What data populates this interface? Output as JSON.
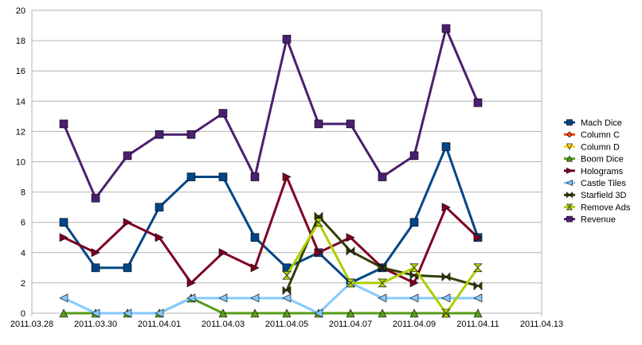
{
  "chart_data": {
    "type": "line",
    "title": "",
    "xlabel": "",
    "ylabel": "",
    "ylim": [
      0,
      20
    ],
    "yticks": [
      0,
      2,
      4,
      6,
      8,
      10,
      12,
      14,
      16,
      18,
      20
    ],
    "xlim": [
      "2011.03.28",
      "2011.04.13"
    ],
    "xtick_labels": [
      "2011.03.28",
      "2011.03.30",
      "2011.04.01",
      "2011.04.03",
      "2011.04.05",
      "2011.04.07",
      "2011.04.09",
      "2011.04.11",
      "2011.04.13"
    ],
    "grid": "horizontal",
    "legend_position": "right",
    "dates": [
      "2011.03.28",
      "2011.03.29",
      "2011.03.30",
      "2011.03.31",
      "2011.04.01",
      "2011.04.02",
      "2011.04.03",
      "2011.04.04",
      "2011.04.05",
      "2011.04.06",
      "2011.04.07",
      "2011.04.08",
      "2011.04.09",
      "2011.04.10",
      "2011.04.11",
      "2011.04.12",
      "2011.04.13"
    ],
    "series": [
      {
        "name": "Mach Dice",
        "color": "#004586",
        "marker": "square",
        "x": [
          "2011.03.29",
          "2011.03.30",
          "2011.03.31",
          "2011.04.01",
          "2011.04.02",
          "2011.04.03",
          "2011.04.04",
          "2011.04.05",
          "2011.04.06",
          "2011.04.07",
          "2011.04.08",
          "2011.04.09",
          "2011.04.10",
          "2011.04.11"
        ],
        "values": [
          6,
          3,
          3,
          7,
          9,
          9,
          5,
          3,
          4,
          2,
          3,
          6,
          11,
          5
        ]
      },
      {
        "name": "Column C",
        "color": "#ff420e",
        "marker": "diamond",
        "x": [],
        "values": []
      },
      {
        "name": "Column D",
        "color": "#ffd320",
        "marker": "triangle-down",
        "x": [],
        "values": []
      },
      {
        "name": "Boom Dice",
        "color": "#579d1c",
        "marker": "triangle-up",
        "x": [
          "2011.03.29",
          "2011.03.30",
          "2011.03.31",
          "2011.04.01",
          "2011.04.02",
          "2011.04.03",
          "2011.04.04",
          "2011.04.05",
          "2011.04.06",
          "2011.04.07",
          "2011.04.08",
          "2011.04.09",
          "2011.04.10",
          "2011.04.11"
        ],
        "values": [
          0,
          0,
          0,
          0,
          1,
          0,
          0,
          0,
          0,
          0,
          0,
          0,
          0,
          0
        ]
      },
      {
        "name": "Holograms",
        "color": "#7e0021",
        "marker": "triangle-right",
        "x": [
          "2011.03.29",
          "2011.03.30",
          "2011.03.31",
          "2011.04.01",
          "2011.04.02",
          "2011.04.03",
          "2011.04.04",
          "2011.04.05",
          "2011.04.06",
          "2011.04.07",
          "2011.04.08",
          "2011.04.09",
          "2011.04.10",
          "2011.04.11"
        ],
        "values": [
          5,
          4,
          6,
          5,
          2,
          4,
          3,
          9,
          4,
          5,
          3,
          2,
          7,
          5
        ]
      },
      {
        "name": "Castle Tiles",
        "color": "#83caff",
        "marker": "triangle-left",
        "x": [
          "2011.03.29",
          "2011.03.30",
          "2011.03.31",
          "2011.04.01",
          "2011.04.02",
          "2011.04.03",
          "2011.04.04",
          "2011.04.05",
          "2011.04.06",
          "2011.04.07",
          "2011.04.08",
          "2011.04.09",
          "2011.04.10",
          "2011.04.11"
        ],
        "values": [
          1,
          0,
          0,
          0,
          1,
          1,
          1,
          1,
          0,
          2,
          1,
          1,
          1,
          1
        ]
      },
      {
        "name": "Starfield 3D",
        "color": "#314004",
        "marker": "bowtie",
        "x": [
          "2011.04.05",
          "2011.04.06",
          "2011.04.07",
          "2011.04.08",
          "2011.04.09",
          "2011.04.10",
          "2011.04.11"
        ],
        "values": [
          1.5,
          6.4,
          4.1,
          3.0,
          2.5,
          2.4,
          1.8
        ]
      },
      {
        "name": "Remove Ads",
        "color": "#aecf00",
        "marker": "hourglass",
        "x": [
          "2011.04.05",
          "2011.04.06",
          "2011.04.07",
          "2011.04.08",
          "2011.04.09",
          "2011.04.10",
          "2011.04.11"
        ],
        "values": [
          2.5,
          6.0,
          2.0,
          2.0,
          3.0,
          0.0,
          3.0
        ]
      },
      {
        "name": "Revenue",
        "color": "#4b1f6f",
        "marker": "square",
        "x": [
          "2011.03.29",
          "2011.03.30",
          "2011.03.31",
          "2011.04.01",
          "2011.04.02",
          "2011.04.03",
          "2011.04.04",
          "2011.04.05",
          "2011.04.06",
          "2011.04.07",
          "2011.04.08",
          "2011.04.09",
          "2011.04.10",
          "2011.04.11"
        ],
        "values": [
          12.5,
          7.6,
          10.4,
          11.8,
          11.8,
          13.2,
          9.0,
          18.1,
          12.5,
          12.5,
          9.0,
          10.4,
          18.8,
          13.9
        ]
      }
    ]
  }
}
